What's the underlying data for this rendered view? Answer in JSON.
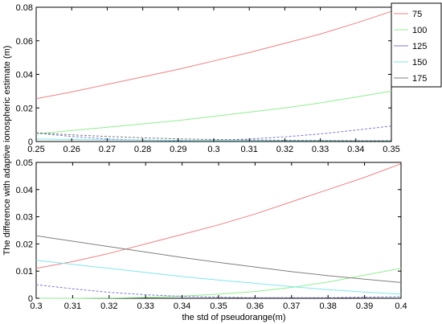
{
  "figure": {
    "ylabel": "The difference with adaptive ionospheric estimate (m)",
    "xlabel": "the std of pseudorange(m)"
  },
  "legend": {
    "entries": [
      {
        "label": "75",
        "color": "#f08080"
      },
      {
        "label": "100",
        "color": "#90ee90"
      },
      {
        "label": "125",
        "color": "#7b7bd0"
      },
      {
        "label": "150",
        "color": "#7fe6ee"
      },
      {
        "label": "175",
        "color": "#808080"
      }
    ]
  },
  "chart_data": [
    {
      "type": "line",
      "xlim": [
        0.25,
        0.35
      ],
      "ylim": [
        0,
        0.08
      ],
      "xticks": [
        "0.25",
        "0.26",
        "0.27",
        "0.28",
        "0.29",
        "0.3",
        "0.31",
        "0.32",
        "0.33",
        "0.34",
        "0.35"
      ],
      "yticks": [
        "0",
        "0.02",
        "0.04",
        "0.06",
        "0.08"
      ],
      "legend": "top-right",
      "grid": false,
      "series": [
        {
          "name": "75",
          "color": "#f08080",
          "x": [
            0.25,
            0.26,
            0.27,
            0.28,
            0.29,
            0.3,
            0.31,
            0.32,
            0.33,
            0.34,
            0.35
          ],
          "y": [
            0.0255,
            0.0295,
            0.034,
            0.0385,
            0.043,
            0.048,
            0.053,
            0.0585,
            0.064,
            0.0705,
            0.0775
          ]
        },
        {
          "name": "100",
          "color": "#90ee90",
          "x": [
            0.25,
            0.26,
            0.27,
            0.28,
            0.29,
            0.3,
            0.31,
            0.32,
            0.33,
            0.34,
            0.35
          ],
          "y": [
            0.0045,
            0.0065,
            0.0085,
            0.0105,
            0.0125,
            0.015,
            0.0175,
            0.02,
            0.023,
            0.0265,
            0.03
          ]
        },
        {
          "name": "125",
          "color": "#7b7bd0",
          "dashed": true,
          "x": [
            0.25,
            0.26,
            0.27,
            0.28,
            0.29,
            0.3,
            0.31,
            0.32,
            0.33,
            0.34,
            0.35
          ],
          "y": [
            0.005,
            0.003,
            0.0015,
            0.0008,
            0.0005,
            0.0008,
            0.0015,
            0.0028,
            0.0045,
            0.0068,
            0.0092
          ]
        },
        {
          "name": "150",
          "color": "#7fe6ee",
          "x": [
            0.25,
            0.26,
            0.27,
            0.28,
            0.29,
            0.3,
            0.31,
            0.32,
            0.33,
            0.34,
            0.35
          ],
          "y": [
            0.0015,
            0.0012,
            0.001,
            0.0008,
            0.0007,
            0.0006,
            0.0006,
            0.0005,
            0.0005,
            0.0005,
            0.0005
          ]
        },
        {
          "name": "175",
          "color": "#808080",
          "dashed": true,
          "x": [
            0.25,
            0.26,
            0.27,
            0.28,
            0.29,
            0.3,
            0.31,
            0.32,
            0.33,
            0.34,
            0.35
          ],
          "y": [
            0.0052,
            0.004,
            0.003,
            0.0022,
            0.0016,
            0.0012,
            0.0009,
            0.0007,
            0.0006,
            0.0005,
            0.0005
          ]
        }
      ]
    },
    {
      "type": "line",
      "xlim": [
        0.3,
        0.4
      ],
      "ylim": [
        0,
        0.05
      ],
      "xticks": [
        "0.3",
        "0.31",
        "0.32",
        "0.33",
        "0.34",
        "0.35",
        "0.36",
        "0.37",
        "0.38",
        "0.39",
        "0.4"
      ],
      "yticks": [
        "0",
        "0.01",
        "0.02",
        "0.03",
        "0.04",
        "0.05"
      ],
      "grid": false,
      "series": [
        {
          "name": "75",
          "color": "#f08080",
          "x": [
            0.3,
            0.31,
            0.32,
            0.33,
            0.34,
            0.35,
            0.36,
            0.37,
            0.38,
            0.39,
            0.4
          ],
          "y": [
            0.011,
            0.0135,
            0.0165,
            0.02,
            0.0235,
            0.027,
            0.031,
            0.0355,
            0.04,
            0.0445,
            0.0495
          ]
        },
        {
          "name": "100",
          "color": "#90ee90",
          "x": [
            0.3,
            0.31,
            0.32,
            0.33,
            0.34,
            0.35,
            0.36,
            0.37,
            0.38,
            0.39,
            0.4
          ],
          "y": [
            0.0,
            0.0,
            0.0001,
            0.0003,
            0.0008,
            0.0015,
            0.0025,
            0.004,
            0.006,
            0.0085,
            0.011
          ]
        },
        {
          "name": "125",
          "color": "#7b7bd0",
          "dashed": true,
          "x": [
            0.3,
            0.31,
            0.32,
            0.33,
            0.34,
            0.35,
            0.36,
            0.37,
            0.38,
            0.39,
            0.4
          ],
          "y": [
            0.005,
            0.0035,
            0.0022,
            0.0013,
            0.0007,
            0.0004,
            0.0002,
            0.0002,
            0.0002,
            0.0004,
            0.0006
          ]
        },
        {
          "name": "150",
          "color": "#7fe6ee",
          "x": [
            0.3,
            0.31,
            0.32,
            0.33,
            0.34,
            0.35,
            0.36,
            0.37,
            0.38,
            0.39,
            0.4
          ],
          "y": [
            0.014,
            0.0125,
            0.011,
            0.0095,
            0.008,
            0.0067,
            0.0055,
            0.0043,
            0.0032,
            0.0023,
            0.0015
          ]
        },
        {
          "name": "175",
          "color": "#808080",
          "x": [
            0.3,
            0.31,
            0.32,
            0.33,
            0.34,
            0.35,
            0.36,
            0.37,
            0.38,
            0.39,
            0.4
          ],
          "y": [
            0.023,
            0.021,
            0.019,
            0.017,
            0.015,
            0.0132,
            0.0115,
            0.0098,
            0.0083,
            0.007,
            0.0058
          ]
        }
      ]
    }
  ]
}
